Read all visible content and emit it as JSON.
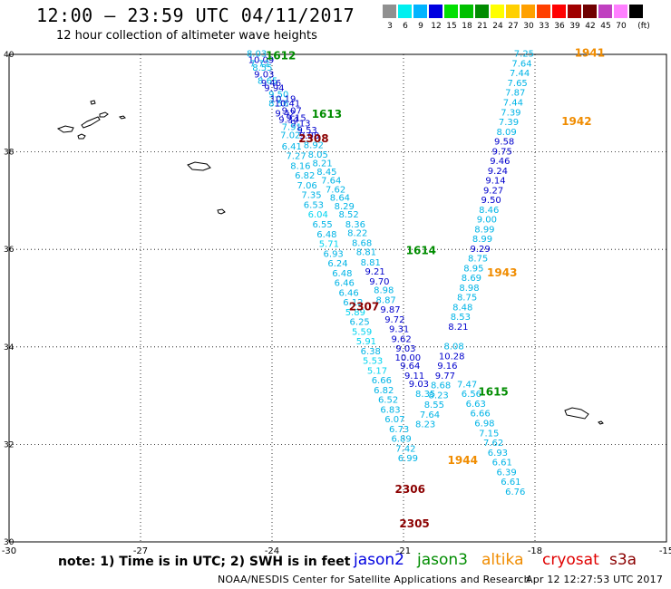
{
  "header": {
    "title": "12:00 – 23:59 UTC 04/11/2017",
    "subtitle": "12 hour collection of altimeter wave heights"
  },
  "color_scale": {
    "unit": "(ft)",
    "bins": [
      {
        "label": "3",
        "color": "#909090"
      },
      {
        "label": "6",
        "color": "#00f0f0"
      },
      {
        "label": "9",
        "color": "#00b4ff"
      },
      {
        "label": "12",
        "color": "#0000e0"
      },
      {
        "label": "15",
        "color": "#00e000"
      },
      {
        "label": "18",
        "color": "#00c000"
      },
      {
        "label": "21",
        "color": "#008c00"
      },
      {
        "label": "24",
        "color": "#ffff00"
      },
      {
        "label": "27",
        "color": "#ffd000"
      },
      {
        "label": "30",
        "color": "#ffa000"
      },
      {
        "label": "33",
        "color": "#ff4000"
      },
      {
        "label": "36",
        "color": "#ff0000"
      },
      {
        "label": "39",
        "color": "#a00000"
      },
      {
        "label": "42",
        "color": "#700000"
      },
      {
        "label": "45",
        "color": "#c040c0"
      },
      {
        "label": "70",
        "color": "#ff80ff"
      },
      {
        "label": "",
        "color": "#000000"
      }
    ]
  },
  "map": {
    "lon_range": [
      -30,
      -15
    ],
    "lat_range": [
      30,
      40
    ],
    "lon_ticks": [
      "-30",
      "-27",
      "-24",
      "-21",
      "-18",
      "-15"
    ],
    "lon_tick_values": [
      -30,
      -27,
      -24,
      -21,
      -18,
      -15
    ],
    "lat_ticks": [
      "30",
      "32",
      "34",
      "36",
      "38",
      "40"
    ],
    "lat_tick_values": [
      30,
      32,
      34,
      36,
      38,
      40
    ]
  },
  "tracks": {
    "track_1612_1615": {
      "color_a": "#0000cc",
      "color_b": "#00b4e6",
      "points": [
        [
          "8.03",
          -24.35,
          39.95,
          "b"
        ],
        [
          "10.09",
          -24.25,
          39.82,
          "a"
        ],
        [
          "7.72",
          -24.28,
          39.75,
          "b"
        ],
        [
          "8.55",
          -24.22,
          39.67,
          "b"
        ],
        [
          "9.03",
          -24.18,
          39.53,
          "a"
        ],
        [
          "8.65",
          -24.1,
          39.4,
          "b"
        ],
        [
          "9.46",
          -24.02,
          39.35,
          "a"
        ],
        [
          "9.94",
          -23.95,
          39.25,
          "a"
        ],
        [
          "9.50",
          -23.85,
          39.12,
          "b"
        ],
        [
          "10.19",
          -23.75,
          39.02,
          "a"
        ],
        [
          "8.56",
          -23.85,
          38.93,
          "b"
        ],
        [
          "10.41",
          -23.65,
          38.93,
          "a"
        ],
        [
          "9.07",
          -23.55,
          38.78,
          "a"
        ],
        [
          "9.42",
          -23.7,
          38.73,
          "a"
        ],
        [
          "9.15",
          -23.45,
          38.63,
          "a"
        ],
        [
          "9.34",
          -23.62,
          38.6,
          "a"
        ],
        [
          "9.13",
          -23.35,
          38.52,
          "a"
        ],
        [
          "7.91",
          -23.55,
          38.45,
          "b"
        ],
        [
          "9.53",
          -23.2,
          38.38,
          "a"
        ],
        [
          "9.08",
          -23.15,
          38.27,
          "a"
        ],
        [
          "8.92",
          -23.05,
          38.08,
          "b"
        ],
        [
          "8.05",
          -22.95,
          37.88,
          "b"
        ],
        [
          "8.21",
          -22.85,
          37.7,
          "b"
        ],
        [
          "8.45",
          -22.75,
          37.53,
          "b"
        ],
        [
          "7.64",
          -22.65,
          37.35,
          "b"
        ],
        [
          "7.62",
          -22.55,
          37.17,
          "b"
        ],
        [
          "8.64",
          -22.45,
          37.0,
          "b"
        ],
        [
          "8.29",
          -22.35,
          36.82,
          "b"
        ],
        [
          "8.52",
          -22.25,
          36.65,
          "b"
        ],
        [
          "8.36",
          -22.1,
          36.45,
          "b"
        ],
        [
          "8.22",
          -22.05,
          36.27,
          "b"
        ],
        [
          "8.68",
          -21.95,
          36.07,
          "b"
        ],
        [
          "8.81",
          -21.85,
          35.88,
          "b"
        ],
        [
          "8.81",
          -21.75,
          35.67,
          "b"
        ],
        [
          "9.21",
          -21.65,
          35.48,
          "a"
        ],
        [
          "9.70",
          -21.55,
          35.28,
          "a"
        ],
        [
          "8.98",
          -21.45,
          35.1,
          "b"
        ],
        [
          "8.87",
          -21.4,
          34.9,
          "b"
        ],
        [
          "9.87",
          -21.3,
          34.7,
          "a"
        ],
        [
          "9.72",
          -21.2,
          34.5,
          "a"
        ],
        [
          "9.31",
          -21.1,
          34.3,
          "a"
        ],
        [
          "9.62",
          -21.05,
          34.1,
          "a"
        ],
        [
          "9.03",
          -20.95,
          33.9,
          "a"
        ],
        [
          "10.00",
          -20.9,
          33.72,
          "a"
        ],
        [
          "9.64",
          -20.85,
          33.55,
          "a"
        ],
        [
          "9.11",
          -20.75,
          33.35,
          "a"
        ],
        [
          "9.03",
          -20.65,
          33.18,
          "a"
        ],
        [
          "8.35",
          -20.5,
          32.97,
          "b"
        ]
      ]
    },
    "track_2307_2305": {
      "color_a": "#00d4f0",
      "color_b": "#00b4e6",
      "points": [
        [
          "7.02",
          -23.58,
          38.28,
          "b"
        ],
        [
          "6.41",
          -23.55,
          38.05,
          "b"
        ],
        [
          "7.27",
          -23.45,
          37.85,
          "b"
        ],
        [
          "8.16",
          -23.35,
          37.65,
          "b"
        ],
        [
          "6.82",
          -23.25,
          37.45,
          "b"
        ],
        [
          "7.06",
          -23.2,
          37.25,
          "b"
        ],
        [
          "7.35",
          -23.1,
          37.05,
          "b"
        ],
        [
          "6.53",
          -23.05,
          36.85,
          "b"
        ],
        [
          "6.04",
          -22.95,
          36.65,
          "a"
        ],
        [
          "6.55",
          -22.85,
          36.45,
          "b"
        ],
        [
          "6.48",
          -22.75,
          36.25,
          "b"
        ],
        [
          "5.71",
          -22.7,
          36.05,
          "a"
        ],
        [
          "6.93",
          -22.6,
          35.85,
          "b"
        ],
        [
          "6.24",
          -22.5,
          35.65,
          "b"
        ],
        [
          "6.48",
          -22.4,
          35.45,
          "b"
        ],
        [
          "6.46",
          -22.35,
          35.25,
          "b"
        ],
        [
          "6.46",
          -22.25,
          35.05,
          "b"
        ],
        [
          "6.12",
          -22.15,
          34.85,
          "b"
        ],
        [
          "5.89",
          -22.1,
          34.65,
          "a"
        ],
        [
          "6.25",
          -22.0,
          34.45,
          "b"
        ],
        [
          "5.59",
          -21.95,
          34.25,
          "a"
        ],
        [
          "5.91",
          -21.85,
          34.05,
          "a"
        ],
        [
          "6.38",
          -21.75,
          33.85,
          "b"
        ],
        [
          "5.53",
          -21.7,
          33.65,
          "a"
        ],
        [
          "5.17",
          -21.6,
          33.45,
          "a"
        ],
        [
          "6.66",
          -21.5,
          33.25,
          "b"
        ],
        [
          "6.82",
          -21.45,
          33.05,
          "b"
        ],
        [
          "6.52",
          -21.35,
          32.85,
          "b"
        ],
        [
          "6.83",
          -21.3,
          32.65,
          "b"
        ],
        [
          "6.07",
          -21.2,
          32.45,
          "b"
        ],
        [
          "6.73",
          -21.1,
          32.25,
          "b"
        ],
        [
          "6.89",
          -21.05,
          32.05,
          "b"
        ],
        [
          "7.42",
          -20.95,
          31.85,
          "b"
        ],
        [
          "6.99",
          -20.9,
          31.65,
          "b"
        ]
      ]
    },
    "track_1941_1944": {
      "color_a": "#0000cc",
      "color_b": "#00b4e6",
      "points": [
        [
          "7.25",
          -18.25,
          39.95,
          "b"
        ],
        [
          "7.64",
          -18.3,
          39.75,
          "b"
        ],
        [
          "7.44",
          -18.35,
          39.55,
          "b"
        ],
        [
          "7.65",
          -18.4,
          39.35,
          "b"
        ],
        [
          "7.87",
          -18.45,
          39.15,
          "b"
        ],
        [
          "7.44",
          -18.5,
          38.95,
          "b"
        ],
        [
          "7.39",
          -18.55,
          38.75,
          "b"
        ],
        [
          "7.39",
          -18.6,
          38.55,
          "b"
        ],
        [
          "8.09",
          -18.65,
          38.35,
          "b"
        ],
        [
          "9.58",
          -18.7,
          38.15,
          "a"
        ],
        [
          "9.75",
          -18.75,
          37.95,
          "a"
        ],
        [
          "9.46",
          -18.8,
          37.75,
          "a"
        ],
        [
          "9.24",
          -18.85,
          37.55,
          "a"
        ],
        [
          "9.14",
          -18.9,
          37.35,
          "a"
        ],
        [
          "9.27",
          -18.95,
          37.15,
          "a"
        ],
        [
          "9.50",
          -19.0,
          36.95,
          "a"
        ],
        [
          "8.46",
          -19.05,
          36.75,
          "b"
        ],
        [
          "9.00",
          -19.1,
          36.55,
          "b"
        ],
        [
          "8.99",
          -19.15,
          36.35,
          "b"
        ],
        [
          "8.99",
          -19.2,
          36.15,
          "b"
        ],
        [
          "9.29",
          -19.25,
          35.95,
          "a"
        ],
        [
          "8.75",
          -19.3,
          35.75,
          "b"
        ],
        [
          "8.95",
          -19.4,
          35.55,
          "b"
        ],
        [
          "8.69",
          -19.45,
          35.35,
          "b"
        ],
        [
          "8.98",
          -19.5,
          35.15,
          "b"
        ],
        [
          "8.75",
          -19.55,
          34.95,
          "b"
        ],
        [
          "8.48",
          -19.65,
          34.75,
          "b"
        ],
        [
          "8.53",
          -19.7,
          34.55,
          "b"
        ],
        [
          "8.21",
          -19.75,
          34.35,
          "a"
        ],
        [
          "8.08",
          -19.85,
          33.95,
          "b"
        ],
        [
          "10.28",
          -19.9,
          33.75,
          "a"
        ],
        [
          "9.16",
          -20.0,
          33.55,
          "a"
        ],
        [
          "9.77",
          -20.05,
          33.35,
          "a"
        ],
        [
          "8.68",
          -20.15,
          33.15,
          "b"
        ],
        [
          "8.23",
          -20.2,
          32.95,
          "b"
        ],
        [
          "8.55",
          -20.3,
          32.75,
          "b"
        ],
        [
          "7.64",
          -20.4,
          32.55,
          "b"
        ],
        [
          "8.23",
          -20.5,
          32.35,
          "b"
        ],
        [
          "7.47",
          -19.55,
          33.17,
          "b"
        ],
        [
          "6.56",
          -19.45,
          32.97,
          "b"
        ],
        [
          "6.63",
          -19.35,
          32.77,
          "b"
        ],
        [
          "6.66",
          -19.25,
          32.57,
          "b"
        ],
        [
          "6.98",
          -19.15,
          32.37,
          "b"
        ],
        [
          "7.15",
          -19.05,
          32.17,
          "b"
        ],
        [
          "7.62",
          -18.95,
          31.97,
          "b"
        ],
        [
          "6.93",
          -18.85,
          31.77,
          "b"
        ],
        [
          "6.61",
          -18.75,
          31.57,
          "b"
        ],
        [
          "6.39",
          -18.65,
          31.37,
          "b"
        ],
        [
          "6.61",
          -18.55,
          31.17,
          "b"
        ],
        [
          "6.76",
          -18.45,
          30.97,
          "b"
        ]
      ]
    }
  },
  "pass_labels": [
    {
      "text": "1612",
      "lon": -23.8,
      "lat": 39.9,
      "color": "#008c00"
    },
    {
      "text": "1613",
      "lon": -22.75,
      "lat": 38.7,
      "color": "#008c00"
    },
    {
      "text": "2308",
      "lon": -23.05,
      "lat": 38.2,
      "color": "#8b0000"
    },
    {
      "text": "1614",
      "lon": -20.6,
      "lat": 35.9,
      "color": "#008c00"
    },
    {
      "text": "2307",
      "lon": -21.9,
      "lat": 34.75,
      "color": "#8b0000"
    },
    {
      "text": "1615",
      "lon": -18.95,
      "lat": 33.0,
      "color": "#008c00"
    },
    {
      "text": "1941",
      "lon": -16.75,
      "lat": 39.95,
      "color": "#f08c00"
    },
    {
      "text": "1942",
      "lon": -17.05,
      "lat": 38.55,
      "color": "#f08c00"
    },
    {
      "text": "1943",
      "lon": -18.75,
      "lat": 35.45,
      "color": "#f08c00"
    },
    {
      "text": "1944",
      "lon": -19.65,
      "lat": 31.6,
      "color": "#f08c00"
    },
    {
      "text": "2306",
      "lon": -20.85,
      "lat": 31.0,
      "color": "#8b0000"
    },
    {
      "text": "2305",
      "lon": -20.75,
      "lat": 30.3,
      "color": "#8b0000"
    }
  ],
  "footer": {
    "note": "note: 1) Time is in UTC; 2) SWH is in feet",
    "legend": [
      {
        "text": "jason2",
        "color": "#0000e0"
      },
      {
        "text": "jason3",
        "color": "#008c00"
      },
      {
        "text": "altika",
        "color": "#f08c00"
      },
      {
        "text": "cryosat",
        "color": "#e00000"
      },
      {
        "text": "s3a",
        "color": "#8b0000"
      }
    ],
    "credits": "NOAA/NESDIS Center for Satellite Applications and Research",
    "timestamp": "Apr 12 12:27:53 UTC 2017"
  }
}
